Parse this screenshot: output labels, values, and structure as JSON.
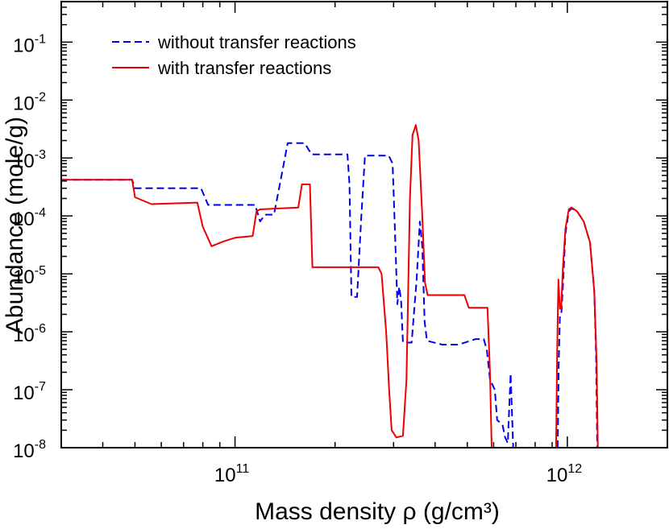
{
  "chart_data": {
    "type": "line",
    "title": "",
    "xlabel": "Mass density ρ (g/cm³)",
    "ylabel": "Abundance (mole/g)",
    "xscale": "log",
    "yscale": "log",
    "xlim": [
      30000000000.0,
      2000000000000.0
    ],
    "ylim": [
      1e-08,
      0.5
    ],
    "x_tick_labels": [
      {
        "value": 100000000000.0,
        "base": "10",
        "exp": "11"
      },
      {
        "value": 1000000000000.0,
        "base": "10",
        "exp": "12"
      }
    ],
    "y_tick_labels": [
      {
        "value": 1e-08,
        "base": "10",
        "exp": "-8"
      },
      {
        "value": 1e-07,
        "base": "10",
        "exp": "-7"
      },
      {
        "value": 1e-06,
        "base": "10",
        "exp": "-6"
      },
      {
        "value": 1e-05,
        "base": "10",
        "exp": "-5"
      },
      {
        "value": 0.0001,
        "base": "10",
        "exp": "-4"
      },
      {
        "value": 0.001,
        "base": "10",
        "exp": "-3"
      },
      {
        "value": 0.01,
        "base": "10",
        "exp": "-2"
      },
      {
        "value": 0.1,
        "base": "10",
        "exp": "-1"
      }
    ],
    "legend_position": "top-left",
    "series": [
      {
        "name": "without transfer reactions",
        "color": "#0000ee",
        "style": "dashed",
        "points": [
          [
            30000000000.0,
            0.00042
          ],
          [
            49000000000.0,
            0.00042
          ],
          [
            50000000000.0,
            0.0003
          ],
          [
            79000000000.0,
            0.0003
          ],
          [
            83000000000.0,
            0.000155
          ],
          [
            115000000000.0,
            0.000155
          ],
          [
            119000000000.0,
            8e-05
          ],
          [
            123000000000.0,
            0.000105
          ],
          [
            131000000000.0,
            0.000105
          ],
          [
            137000000000.0,
            0.0004
          ],
          [
            144000000000.0,
            0.0018
          ],
          [
            162000000000.0,
            0.0018
          ],
          [
            170000000000.0,
            0.00115
          ],
          [
            218000000000.0,
            0.00115
          ],
          [
            221000000000.0,
            0.00035
          ],
          [
            224000000000.0,
            4e-06
          ],
          [
            233000000000.0,
            4e-06
          ],
          [
            240000000000.0,
            0.0001
          ],
          [
            246000000000.0,
            0.0011
          ],
          [
            290000000000.0,
            0.0011
          ],
          [
            298000000000.0,
            0.0008
          ],
          [
            303000000000.0,
            5e-05
          ],
          [
            308000000000.0,
            3e-06
          ],
          [
            312000000000.0,
            6e-06
          ],
          [
            316000000000.0,
            3.5e-06
          ],
          [
            320000000000.0,
            6.5e-07
          ],
          [
            340000000000.0,
            6.5e-07
          ],
          [
            352000000000.0,
            8e-06
          ],
          [
            360000000000.0,
            8e-05
          ],
          [
            366000000000.0,
            3e-05
          ],
          [
            372000000000.0,
            1.5e-06
          ],
          [
            378000000000.0,
            7e-07
          ],
          [
            420000000000.0,
            6e-07
          ],
          [
            470000000000.0,
            6e-07
          ],
          [
            530000000000.0,
            7.5e-07
          ],
          [
            560000000000.0,
            7.5e-07
          ],
          [
            572000000000.0,
            5e-07
          ],
          [
            585000000000.0,
            1.5e-07
          ],
          [
            605000000000.0,
            1e-07
          ],
          [
            615000000000.0,
            3e-08
          ],
          [
            638000000000.0,
            2.5e-08
          ],
          [
            650000000000.0,
            1.5e-08
          ],
          [
            662000000000.0,
            1.2e-08
          ],
          [
            675000000000.0,
            1.9e-07
          ],
          [
            687000000000.0,
            1e-08
          ]
        ],
        "points2": [
          [
            935000000000.0,
            1e-08
          ],
          [
            942000000000.0,
            3e-07
          ],
          [
            950000000000.0,
            2e-06
          ],
          [
            960000000000.0,
            2.2e-06
          ],
          [
            972000000000.0,
            8e-06
          ],
          [
            987000000000.0,
            5e-05
          ],
          [
            1010000000000.0,
            0.00012
          ],
          [
            1030000000000.0,
            0.000135
          ],
          [
            1070000000000.0,
            0.00012
          ],
          [
            1120000000000.0,
            8e-05
          ],
          [
            1170000000000.0,
            3.5e-05
          ],
          [
            1205000000000.0,
            5e-06
          ],
          [
            1220000000000.0,
            4e-07
          ],
          [
            1230000000000.0,
            1e-08
          ]
        ]
      },
      {
        "name": "with transfer reactions",
        "color": "#ee0000",
        "style": "solid",
        "points": [
          [
            30000000000.0,
            0.00042
          ],
          [
            49000000000.0,
            0.00042
          ],
          [
            50000000000.0,
            0.00021
          ],
          [
            56000000000.0,
            0.00016
          ],
          [
            77000000000.0,
            0.00017
          ],
          [
            80000000000.0,
            6.5e-05
          ],
          [
            85000000000.0,
            3e-05
          ],
          [
            92000000000.0,
            3.6e-05
          ],
          [
            100000000000.0,
            4.2e-05
          ],
          [
            113000000000.0,
            4.5e-05
          ],
          [
            116000000000.0,
            0.00012
          ],
          [
            119000000000.0,
            0.00013
          ],
          [
            155000000000.0,
            0.00014
          ],
          [
            159000000000.0,
            0.00035
          ],
          [
            168000000000.0,
            0.00035
          ],
          [
            171000000000.0,
            1.3e-05
          ],
          [
            220000000000.0,
            1.3e-05
          ],
          [
            270000000000.0,
            1.3e-05
          ],
          [
            276000000000.0,
            1e-05
          ],
          [
            285000000000.0,
            1e-06
          ],
          [
            291000000000.0,
            1e-07
          ],
          [
            296000000000.0,
            2e-08
          ],
          [
            306000000000.0,
            1.5e-08
          ],
          [
            320000000000.0,
            1.6e-08
          ],
          [
            328000000000.0,
            1.5e-07
          ],
          [
            336000000000.0,
            0.0002
          ],
          [
            342000000000.0,
            0.0025
          ],
          [
            350000000000.0,
            0.0037
          ],
          [
            357000000000.0,
            0.002
          ],
          [
            366000000000.0,
            0.0001
          ],
          [
            373000000000.0,
            7e-06
          ],
          [
            380000000000.0,
            4.3e-06
          ],
          [
            490000000000.0,
            4.3e-06
          ],
          [
            505000000000.0,
            2.6e-06
          ],
          [
            575000000000.0,
            2.6e-06
          ],
          [
            585000000000.0,
            2e-07
          ],
          [
            592000000000.0,
            1e-08
          ]
        ],
        "points2": [
          [
            925000000000.0,
            1e-08
          ],
          [
            932000000000.0,
            5e-07
          ],
          [
            940000000000.0,
            8e-06
          ],
          [
            950000000000.0,
            2.5e-06
          ],
          [
            958000000000.0,
            2.5e-06
          ],
          [
            970000000000.0,
            1.3e-05
          ],
          [
            987000000000.0,
            6e-05
          ],
          [
            1010000000000.0,
            0.00013
          ],
          [
            1030000000000.0,
            0.00014
          ],
          [
            1070000000000.0,
            0.00012
          ],
          [
            1120000000000.0,
            8e-05
          ],
          [
            1170000000000.0,
            3.5e-05
          ],
          [
            1205000000000.0,
            5e-06
          ],
          [
            1225000000000.0,
            3e-07
          ],
          [
            1235000000000.0,
            1e-08
          ]
        ]
      }
    ]
  }
}
